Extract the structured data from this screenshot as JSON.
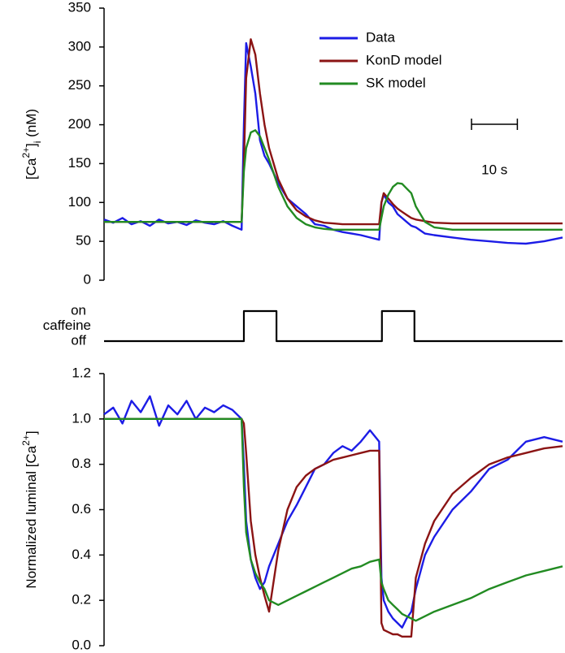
{
  "chart_data": [
    {
      "type": "line",
      "ylabel": [
        {
          "text": "[Ca"
        },
        {
          "text": "2+",
          "sup": true
        },
        {
          "text": "]"
        },
        {
          "text": "i",
          "sub": true
        },
        {
          "text": " (nM)"
        }
      ],
      "xlim": [
        0,
        100
      ],
      "ylim": [
        0,
        350
      ],
      "yticks": [
        0,
        50,
        100,
        150,
        200,
        250,
        300,
        350
      ],
      "legend": "upper right",
      "scale_bar": {
        "length": 10,
        "label": "10 s"
      },
      "x": [
        0,
        2,
        4,
        6,
        8,
        10,
        12,
        14,
        16,
        18,
        20,
        22,
        24,
        26,
        28,
        30,
        30.5,
        31,
        32,
        33,
        34,
        35,
        36,
        38,
        40,
        42,
        44,
        46,
        48,
        50,
        52,
        54,
        56,
        58,
        60,
        60.5,
        61,
        62,
        63,
        64,
        65,
        66,
        67,
        68,
        70,
        72,
        76,
        80,
        84,
        88,
        92,
        96,
        100
      ],
      "series": [
        {
          "name": "Data",
          "color": "#1c1ce6",
          "values": [
            78,
            74,
            80,
            72,
            76,
            70,
            78,
            73,
            75,
            71,
            77,
            74,
            72,
            76,
            70,
            65,
            200,
            305,
            275,
            240,
            180,
            160,
            150,
            125,
            105,
            95,
            85,
            72,
            70,
            65,
            62,
            60,
            58,
            55,
            52,
            100,
            110,
            100,
            95,
            85,
            80,
            75,
            70,
            68,
            60,
            58,
            55,
            52,
            50,
            48,
            47,
            50,
            55
          ]
        },
        {
          "name": "KonD model",
          "color": "#8b1414",
          "values": [
            75,
            75,
            75,
            75,
            75,
            75,
            75,
            75,
            75,
            75,
            75,
            75,
            75,
            75,
            75,
            75,
            150,
            260,
            310,
            290,
            240,
            200,
            170,
            130,
            105,
            90,
            82,
            77,
            74,
            73,
            72,
            72,
            72,
            72,
            72,
            100,
            112,
            105,
            98,
            92,
            88,
            84,
            80,
            78,
            76,
            74,
            73,
            73,
            73,
            73,
            73,
            73,
            73
          ]
        },
        {
          "name": "SK model",
          "color": "#228b22",
          "values": [
            75,
            75,
            75,
            75,
            75,
            75,
            75,
            75,
            75,
            75,
            75,
            75,
            75,
            75,
            75,
            75,
            140,
            170,
            190,
            193,
            185,
            170,
            155,
            120,
            95,
            80,
            72,
            68,
            66,
            65,
            65,
            65,
            65,
            65,
            65,
            80,
            95,
            110,
            120,
            125,
            124,
            118,
            112,
            95,
            75,
            68,
            65,
            65,
            65,
            65,
            65,
            65,
            65
          ]
        }
      ]
    },
    {
      "type": "step",
      "ylabel": "caffeine",
      "xlim": [
        0,
        100
      ],
      "ylim": [
        0,
        1
      ],
      "yticks": [
        {
          "value": 0,
          "label": "off"
        },
        {
          "value": 1,
          "label": "on"
        }
      ],
      "x": [
        0,
        30.5,
        30.5,
        37.6,
        37.6,
        60.6,
        60.6,
        67.7,
        67.7,
        100
      ],
      "series": [
        {
          "color": "#000000",
          "values": [
            0,
            0,
            1,
            1,
            0,
            0,
            1,
            1,
            0,
            0
          ]
        }
      ]
    },
    {
      "type": "line",
      "ylabel": [
        {
          "text": "Normalized luminal [Ca"
        },
        {
          "text": "2+",
          "sup": true
        },
        {
          "text": "]"
        }
      ],
      "xlim": [
        0,
        100
      ],
      "ylim": [
        0,
        1.2
      ],
      "yticks": [
        {
          "value": 0,
          "label": "0.0"
        },
        0.2,
        0.4,
        0.6,
        0.8,
        {
          "value": 1,
          "label": "1.0"
        },
        1.2
      ],
      "x": [
        0,
        2,
        4,
        6,
        8,
        10,
        12,
        14,
        16,
        18,
        20,
        22,
        24,
        26,
        28,
        30,
        30.5,
        31,
        32,
        33,
        34,
        35,
        36,
        38,
        40,
        42,
        44,
        46,
        48,
        50,
        52,
        54,
        56,
        58,
        60,
        60.5,
        61,
        62,
        63,
        64,
        65,
        66,
        67,
        68,
        70,
        72,
        76,
        80,
        84,
        88,
        92,
        96,
        100
      ],
      "series": [
        {
          "name": "Data",
          "color": "#1c1ce6",
          "values": [
            1.02,
            1.05,
            0.98,
            1.08,
            1.03,
            1.1,
            0.97,
            1.06,
            1.02,
            1.08,
            1.0,
            1.05,
            1.03,
            1.06,
            1.04,
            1.0,
            0.8,
            0.55,
            0.38,
            0.3,
            0.25,
            0.28,
            0.35,
            0.45,
            0.55,
            0.62,
            0.7,
            0.78,
            0.8,
            0.85,
            0.88,
            0.86,
            0.9,
            0.95,
            0.9,
            0.3,
            0.2,
            0.15,
            0.12,
            0.1,
            0.08,
            0.12,
            0.15,
            0.25,
            0.4,
            0.48,
            0.6,
            0.68,
            0.78,
            0.82,
            0.9,
            0.92,
            0.9
          ]
        },
        {
          "name": "KonD model",
          "color": "#8b1414",
          "values": [
            1,
            1,
            1,
            1,
            1,
            1,
            1,
            1,
            1,
            1,
            1,
            1,
            1,
            1,
            1,
            1,
            0.98,
            0.85,
            0.55,
            0.4,
            0.3,
            0.22,
            0.15,
            0.42,
            0.6,
            0.7,
            0.75,
            0.78,
            0.8,
            0.82,
            0.83,
            0.84,
            0.85,
            0.86,
            0.86,
            0.1,
            0.07,
            0.06,
            0.05,
            0.05,
            0.04,
            0.04,
            0.04,
            0.3,
            0.45,
            0.55,
            0.67,
            0.74,
            0.8,
            0.83,
            0.85,
            0.87,
            0.88
          ]
        },
        {
          "name": "SK model",
          "color": "#228b22",
          "values": [
            1,
            1,
            1,
            1,
            1,
            1,
            1,
            1,
            1,
            1,
            1,
            1,
            1,
            1,
            1,
            1,
            0.7,
            0.5,
            0.38,
            0.32,
            0.28,
            0.25,
            0.2,
            0.18,
            0.2,
            0.22,
            0.24,
            0.26,
            0.28,
            0.3,
            0.32,
            0.34,
            0.35,
            0.37,
            0.38,
            0.28,
            0.25,
            0.2,
            0.18,
            0.16,
            0.14,
            0.13,
            0.12,
            0.11,
            0.13,
            0.15,
            0.18,
            0.21,
            0.25,
            0.28,
            0.31,
            0.33,
            0.35
          ]
        }
      ]
    }
  ]
}
